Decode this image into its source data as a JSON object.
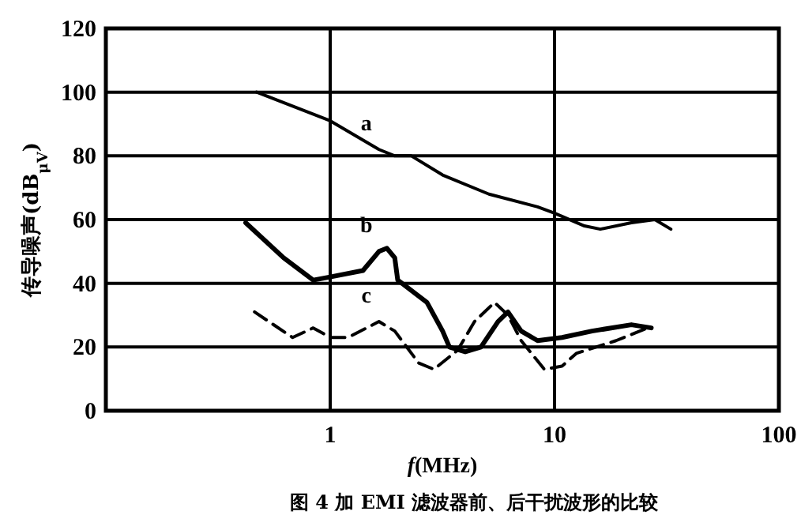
{
  "chart_data": {
    "type": "line",
    "title": "图 4 加 EMI 滤波器前、后干扰波形的比较",
    "xlabel": "*f*(MHz)",
    "ylabel": "传导噪声(dB$_{μV}$)",
    "log": "x",
    "xlim": [
      0.1,
      100
    ],
    "xticks": [
      {
        "value": 0.1,
        "label": null
      },
      1,
      10,
      100
    ],
    "ylim": [
      0,
      120
    ],
    "yticks": [
      0,
      20,
      40,
      60,
      80,
      100,
      120
    ],
    "grid": true,
    "series": [
      {
        "name": "a",
        "color": "#000000",
        "line_style": "solid",
        "x": [
          0.47,
          1,
          1.65,
          1.94,
          2.3,
          3.17,
          5.1,
          8.4,
          10,
          13.6,
          16,
          22,
          28,
          33
        ],
        "values": [
          100,
          91,
          82,
          80,
          80,
          74,
          68,
          64,
          62,
          58,
          57,
          59,
          60,
          57
        ]
      },
      {
        "name": "b",
        "color": "#000000",
        "line_style": "solid",
        "x": [
          0.42,
          0.62,
          0.84,
          1,
          1.4,
          1.65,
          1.79,
          1.94,
          2,
          2.7,
          3.17,
          3.4,
          4,
          4.7,
          5.6,
          6.2,
          7.1,
          8.4,
          10.8,
          14.7,
          22,
          27
        ],
        "values": [
          59,
          48,
          41,
          42,
          44,
          50,
          51,
          48,
          41,
          34,
          25,
          20,
          18.5,
          20,
          28,
          31,
          25,
          22,
          23,
          25,
          27,
          26
        ]
      },
      {
        "name": "c",
        "color": "#000000",
        "line_style": "dashed",
        "x": [
          0.46,
          0.68,
          0.84,
          1,
          1.2,
          1.65,
          1.94,
          2.48,
          2.9,
          3.7,
          4.4,
          5.4,
          6.2,
          7.1,
          9,
          10.8,
          12.5,
          18.8,
          26
        ],
        "values": [
          31,
          23,
          26,
          23,
          23,
          28,
          25,
          15,
          13,
          19,
          28,
          34,
          30,
          22,
          13,
          14,
          18,
          22,
          26
        ]
      }
    ]
  }
}
